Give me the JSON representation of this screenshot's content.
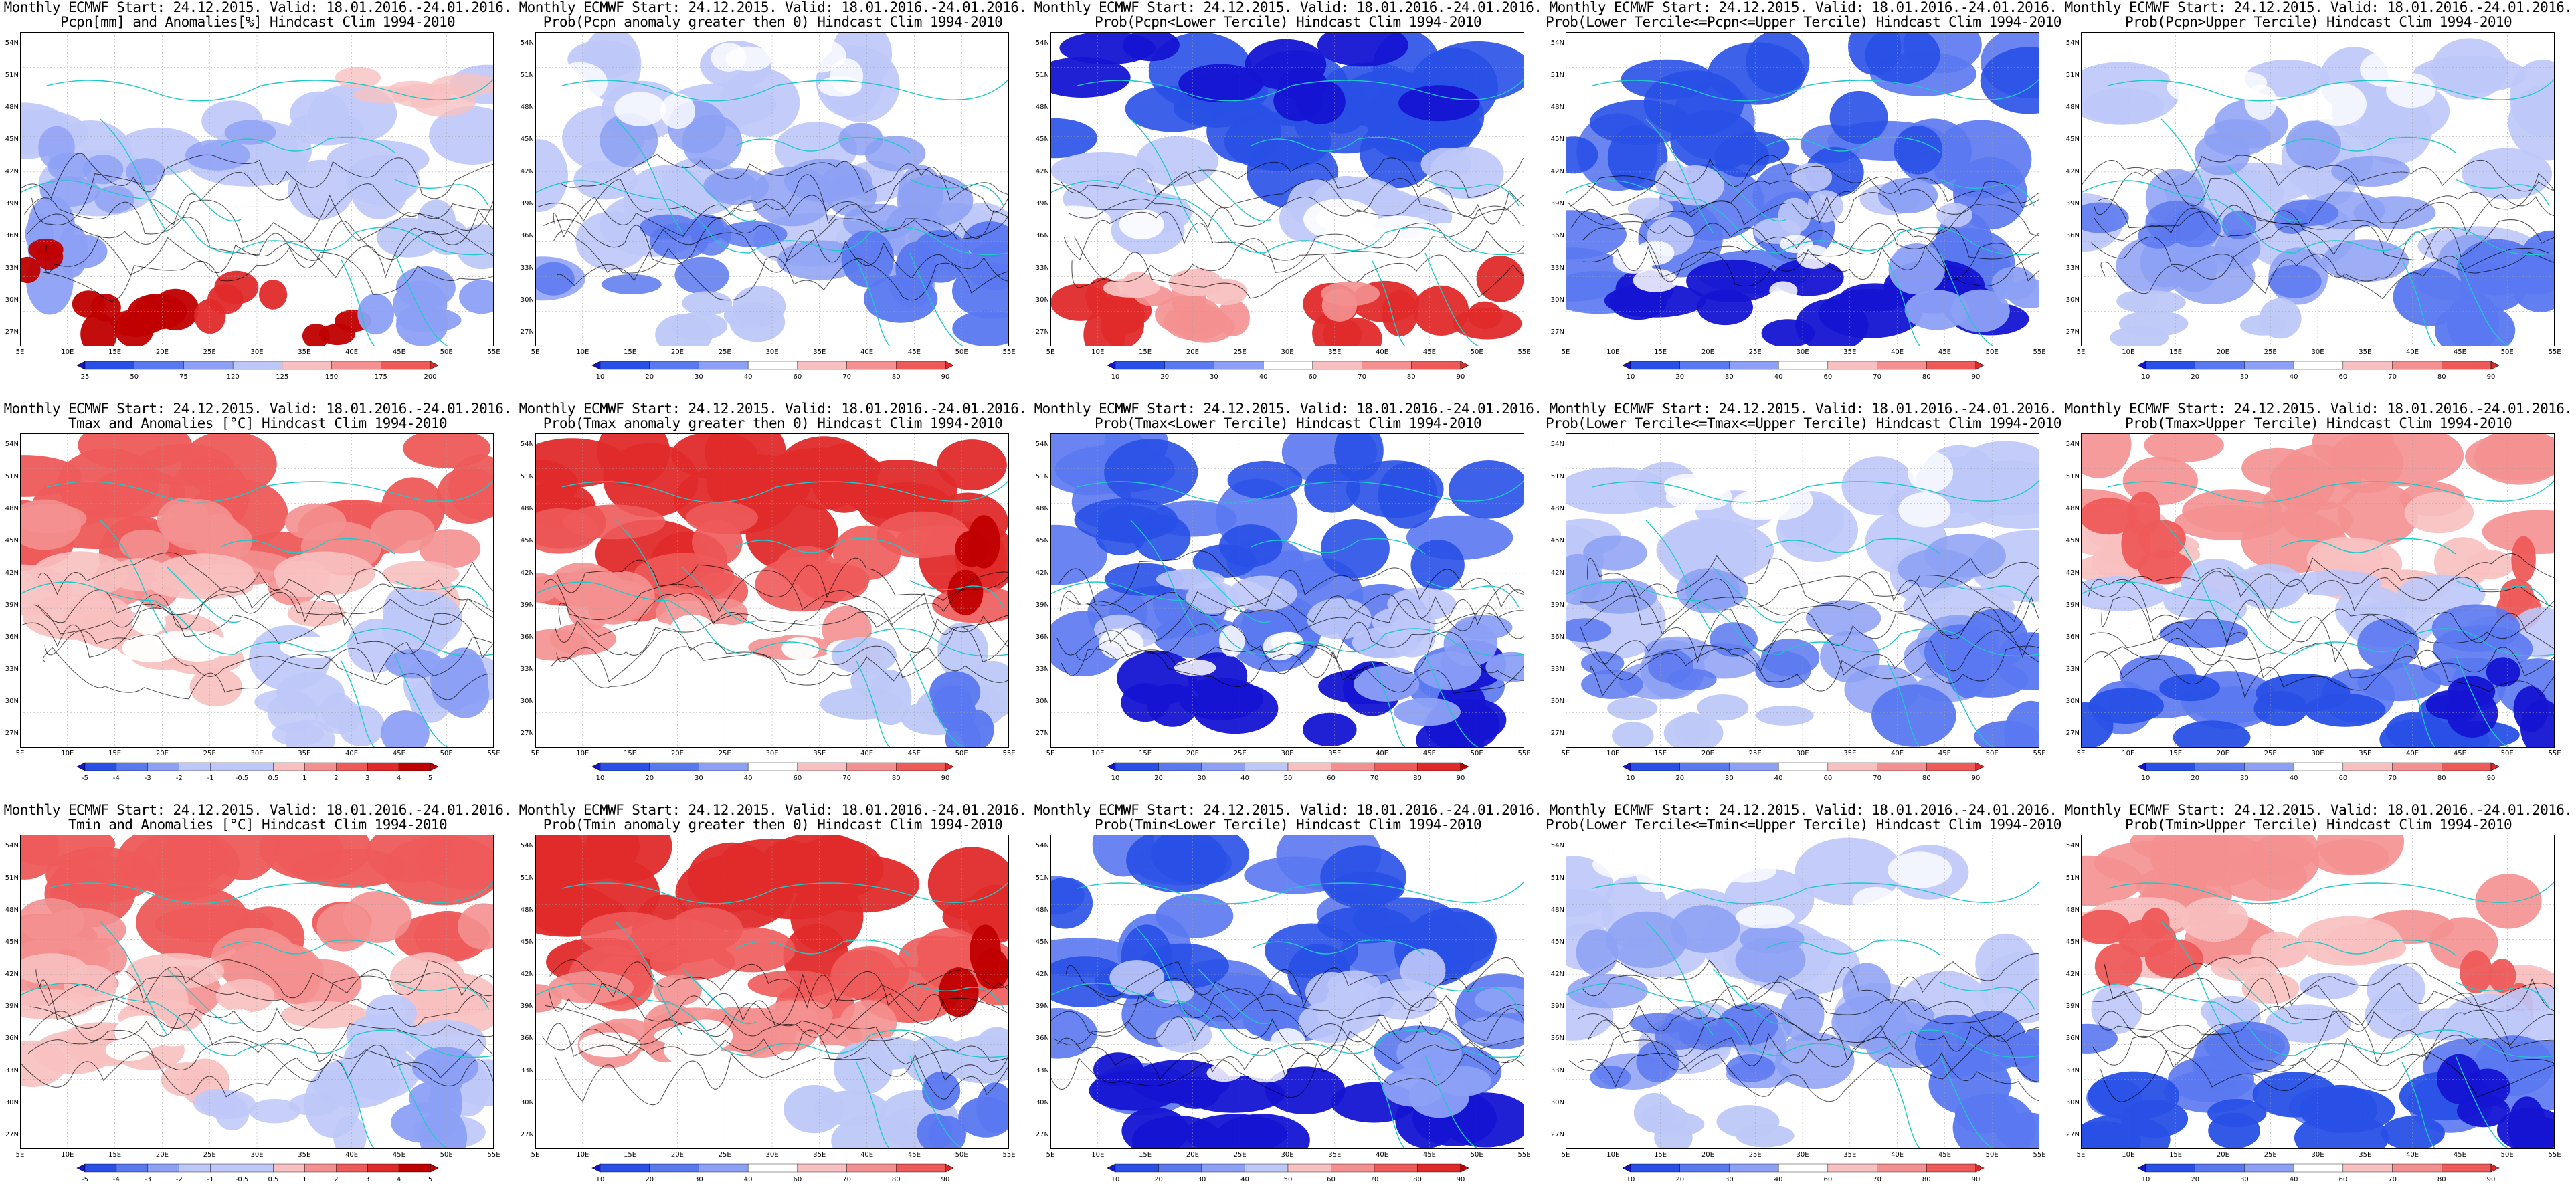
{
  "rows": [
    {
      "panels": [
        {
          "title1": "Monthly ECMWF Start: 24.12.2015. Valid: 18.01.2016.-24.01.2016.",
          "title2": "Pcpn[mm] and Anomalies[%] Hindcast Clim 1994-2010",
          "field": "pcpn_anom",
          "cbar_labels": [
            "25",
            "50",
            "75",
            "120",
            "125",
            "150",
            "175",
            "200"
          ]
        },
        {
          "title1": "Monthly ECMWF Start: 24.12.2015. Valid: 18.01.2016.-24.01.2016.",
          "title2": "Prob(Pcpn anomaly greater then 0) Hindcast Clim 1994-2010",
          "field": "prob_blue",
          "cbar_labels": [
            "10",
            "20",
            "30",
            "40",
            "60",
            "70",
            "80",
            "90"
          ]
        },
        {
          "title1": "Monthly ECMWF Start: 24.12.2015. Valid: 18.01.2016.-24.01.2016.",
          "title2": "Prob(Pcpn<Lower Tercile) Hindcast Clim 1994-2010",
          "field": "prob_blue_redsouth",
          "cbar_labels": [
            "10",
            "20",
            "30",
            "40",
            "60",
            "70",
            "80",
            "90"
          ]
        },
        {
          "title1": "Monthly ECMWF Start: 24.12.2015. Valid: 18.01.2016.-24.01.2016.",
          "title2": "Prob(Lower Tercile<=Pcpn<=Upper Tercile) Hindcast Clim 1994-2010",
          "field": "prob_blue_dark",
          "cbar_labels": [
            "10",
            "20",
            "30",
            "40",
            "60",
            "70",
            "80",
            "90"
          ]
        },
        {
          "title1": "Monthly ECMWF Start: 24.12.2015. Valid: 18.01.2016.-24.01.2016.",
          "title2": "Prob(Pcpn>Upper Tercile) Hindcast Clim 1994-2010",
          "field": "prob_blue",
          "cbar_labels": [
            "10",
            "20",
            "30",
            "40",
            "60",
            "70",
            "80",
            "90"
          ]
        }
      ]
    },
    {
      "panels": [
        {
          "title1": "Monthly ECMWF Start: 24.12.2015. Valid: 18.01.2016.-24.01.2016.",
          "title2": "Tmax and Anomalies [°C] Hindcast Clim 1994-2010",
          "field": "temp_anom",
          "cbar_labels": [
            "-5",
            "-4",
            "-3",
            "-2",
            "-1",
            "-0.5",
            "0.5",
            "1",
            "2",
            "3",
            "4",
            "5"
          ]
        },
        {
          "title1": "Monthly ECMWF Start: 24.12.2015. Valid: 18.01.2016.-24.01.2016.",
          "title2": "Prob(Tmax anomaly greater then 0) Hindcast Clim 1994-2010",
          "field": "prob_red",
          "cbar_labels": [
            "10",
            "20",
            "30",
            "40",
            "60",
            "70",
            "80",
            "90"
          ]
        },
        {
          "title1": "Monthly ECMWF Start: 24.12.2015. Valid: 18.01.2016.-24.01.2016.",
          "title2": "Prob(Tmax<Lower Tercile) Hindcast Clim 1994-2010",
          "field": "prob_blue_dark",
          "cbar_labels": [
            "10",
            "20",
            "30",
            "40",
            "50",
            "60",
            "70",
            "80",
            "90"
          ]
        },
        {
          "title1": "Monthly ECMWF Start: 24.12.2015. Valid: 18.01.2016.-24.01.2016.",
          "title2": "Prob(Lower Tercile<=Tmax<=Upper Tercile) Hindcast Clim 1994-2010",
          "field": "prob_blue",
          "cbar_labels": [
            "10",
            "20",
            "30",
            "40",
            "60",
            "70",
            "80",
            "90"
          ]
        },
        {
          "title1": "Monthly ECMWF Start: 24.12.2015. Valid: 18.01.2016.-24.01.2016.",
          "title2": "Prob(Tmax>Upper Tercile) Hindcast Clim 1994-2010",
          "field": "prob_red_bluesouth",
          "cbar_labels": [
            "10",
            "20",
            "30",
            "40",
            "60",
            "70",
            "80",
            "90"
          ]
        }
      ]
    },
    {
      "panels": [
        {
          "title1": "Monthly ECMWF Start: 24.12.2015. Valid: 18.01.2016.-24.01.2016.",
          "title2": "Tmin and Anomalies [°C] Hindcast Clim 1994-2010",
          "field": "temp_anom",
          "cbar_labels": [
            "-5",
            "-4",
            "-3",
            "-2",
            "-1",
            "-0.5",
            "0.5",
            "1",
            "2",
            "3",
            "4",
            "5"
          ]
        },
        {
          "title1": "Monthly ECMWF Start: 24.12.2015. Valid: 18.01.2016.-24.01.2016.",
          "title2": "Prob(Tmin anomaly greater then 0) Hindcast Clim 1994-2010",
          "field": "prob_red",
          "cbar_labels": [
            "10",
            "20",
            "30",
            "40",
            "60",
            "70",
            "80",
            "90"
          ]
        },
        {
          "title1": "Monthly ECMWF Start: 24.12.2015. Valid: 18.01.2016.-24.01.2016.",
          "title2": "Prob(Tmin<Lower Tercile) Hindcast Clim 1994-2010",
          "field": "prob_blue_dark",
          "cbar_labels": [
            "10",
            "20",
            "30",
            "40",
            "50",
            "60",
            "70",
            "80",
            "90"
          ]
        },
        {
          "title1": "Monthly ECMWF Start: 24.12.2015. Valid: 18.01.2016.-24.01.2016.",
          "title2": "Prob(Lower Tercile<=Tmin<=Upper Tercile) Hindcast Clim 1994-2010",
          "field": "prob_blue",
          "cbar_labels": [
            "10",
            "20",
            "30",
            "40",
            "60",
            "70",
            "80",
            "90"
          ]
        },
        {
          "title1": "Monthly ECMWF Start: 24.12.2015. Valid: 18.01.2016.-24.01.2016.",
          "title2": "Prob(Tmin>Upper Tercile) Hindcast Clim 1994-2010",
          "field": "prob_red_bluesouth",
          "cbar_labels": [
            "10",
            "20",
            "30",
            "40",
            "60",
            "70",
            "80",
            "90"
          ]
        }
      ]
    }
  ],
  "axes": {
    "x_ticks": [
      "5E",
      "10E",
      "15E",
      "20E",
      "25E",
      "30E",
      "35E",
      "40E",
      "45E",
      "50E",
      "55E"
    ],
    "y_ticks": [
      "54N",
      "51N",
      "48N",
      "45N",
      "42N",
      "39N",
      "36N",
      "33N",
      "30N",
      "27N"
    ]
  },
  "colors": {
    "blue_ramp": [
      "#1414d2",
      "#2850e6",
      "#5a78f0",
      "#8ca0f5",
      "#bec8f8",
      "#ffffff"
    ],
    "red_ramp": [
      "#ffffff",
      "#f8c0c0",
      "#f49090",
      "#ee5a5a",
      "#e02a2a",
      "#c00000"
    ],
    "coast": "#20c8c8",
    "contour": "#000000",
    "grid": "#a0a0a0"
  }
}
